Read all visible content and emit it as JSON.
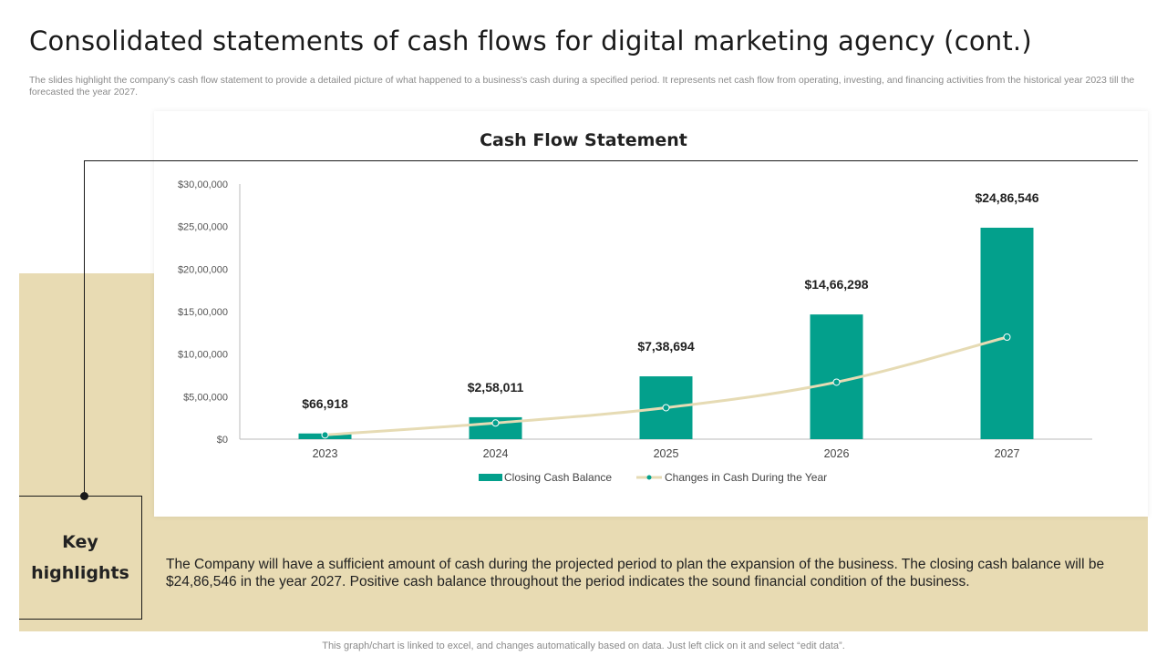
{
  "page": {
    "title": "Consolidated statements of cash flows for digital marketing agency (cont.)",
    "subtitle": "The slides highlight the company's cash flow statement to provide a detailed picture of what happened to a business's cash during a specified period. It represents net cash flow from operating, investing, and financing activities from the historical year 2023 till the forecasted the year 2027."
  },
  "highlights": {
    "heading_line1": "Key",
    "heading_line2": "highlights",
    "text": "The Company will have a sufficient amount of cash during the projected period to plan the expansion of the business. The closing cash balance will be $24,86,546 in the year 2027. Positive cash balance throughout the period indicates the sound financial condition of the business."
  },
  "footnote": "This graph/chart is linked to excel, and changes automatically based on data. Just left click on it and select “edit data”.",
  "colors": {
    "bar": "#03a08c",
    "line": "#e6dbb4",
    "panel": "#e8dbb3"
  },
  "chart_data": {
    "type": "bar",
    "title": "Cash Flow Statement",
    "categories": [
      "2023",
      "2024",
      "2025",
      "2026",
      "2027"
    ],
    "ylim": [
      0,
      3000000
    ],
    "y_ticks": [
      0,
      500000,
      1000000,
      1500000,
      2000000,
      2500000,
      3000000
    ],
    "y_tick_labels": [
      "$0",
      "$5,00,000",
      "$10,00,000",
      "$15,00,000",
      "$20,00,000",
      "$25,00,000",
      "$30,00,000"
    ],
    "grid": false,
    "legend": "bottom",
    "series": [
      {
        "name": "Closing Cash Balance",
        "type": "bar",
        "values": [
          66918,
          258011,
          738694,
          1466298,
          2486546
        ],
        "labels": [
          "$66,918",
          "$2,58,011",
          "$7,38,694",
          "$14,66,298",
          "$24,86,546"
        ]
      },
      {
        "name": "Changes in Cash During the Year",
        "type": "line",
        "values": [
          50000,
          190000,
          370000,
          670000,
          1200000
        ]
      }
    ]
  }
}
